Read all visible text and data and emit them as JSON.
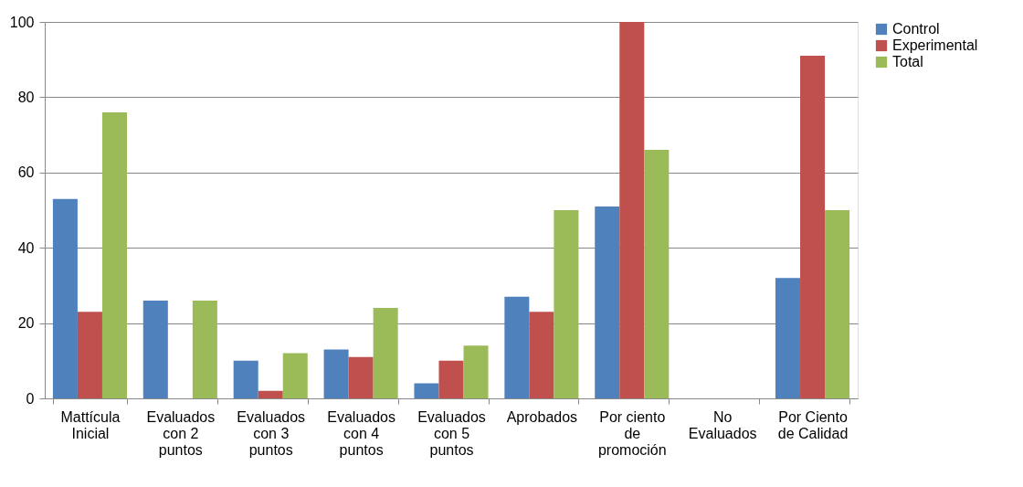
{
  "chart_data": {
    "type": "bar",
    "categories": [
      "Mattícula\nInicial",
      "Evaluados\ncon 2\npuntos",
      "Evaluados\ncon 3\npuntos",
      "Evaluados\ncon 4\npuntos",
      "Evaluados\ncon 5\npuntos",
      "Aprobados",
      "Por ciento\nde\npromoción",
      "No\nEvaluados",
      "Por Ciento\nde Calidad"
    ],
    "series": [
      {
        "name": "Control",
        "color": "#4f81bd",
        "values": [
          53,
          26,
          10,
          13,
          4,
          27,
          51,
          0,
          32
        ]
      },
      {
        "name": "Experimental",
        "color": "#c0504d",
        "values": [
          23,
          0,
          2,
          11,
          10,
          23,
          100,
          0,
          91
        ]
      },
      {
        "name": "Total",
        "color": "#9bbb59",
        "values": [
          76,
          26,
          12,
          24,
          14,
          50,
          66,
          0,
          50
        ]
      }
    ],
    "ylim": [
      0,
      100
    ],
    "yticks": [
      0,
      20,
      40,
      60,
      80,
      100
    ],
    "grid": "y",
    "legend": "right"
  }
}
